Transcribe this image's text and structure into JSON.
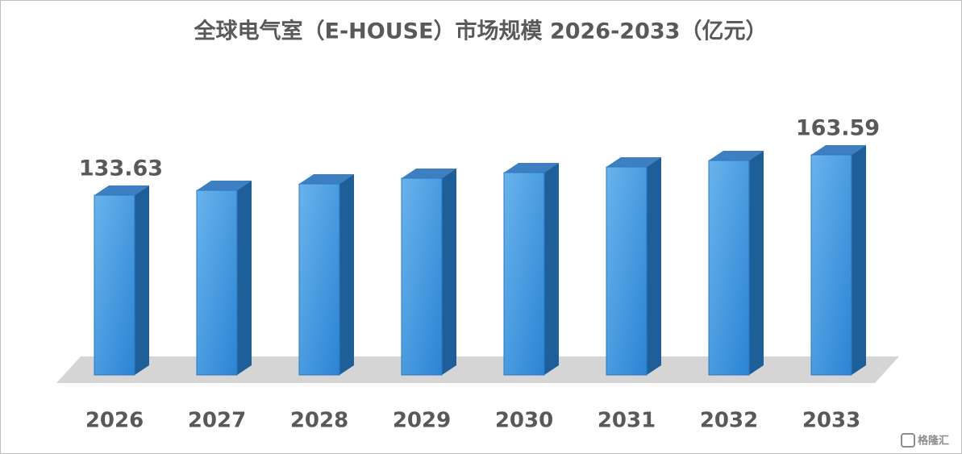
{
  "chart_data": {
    "type": "bar3d",
    "title": "全球电气室（E-HOUSE）市场规模 2026-2033（亿元）",
    "categories": [
      "2026",
      "2027",
      "2028",
      "2029",
      "2030",
      "2031",
      "2032",
      "2033"
    ],
    "values": [
      133.63,
      137.2,
      142.0,
      146.2,
      150.4,
      154.6,
      159.4,
      163.59
    ],
    "value_labels": [
      "133.63",
      null,
      null,
      null,
      null,
      null,
      null,
      "163.59"
    ],
    "color": "#4a9be0",
    "watermark": "格隆汇"
  }
}
